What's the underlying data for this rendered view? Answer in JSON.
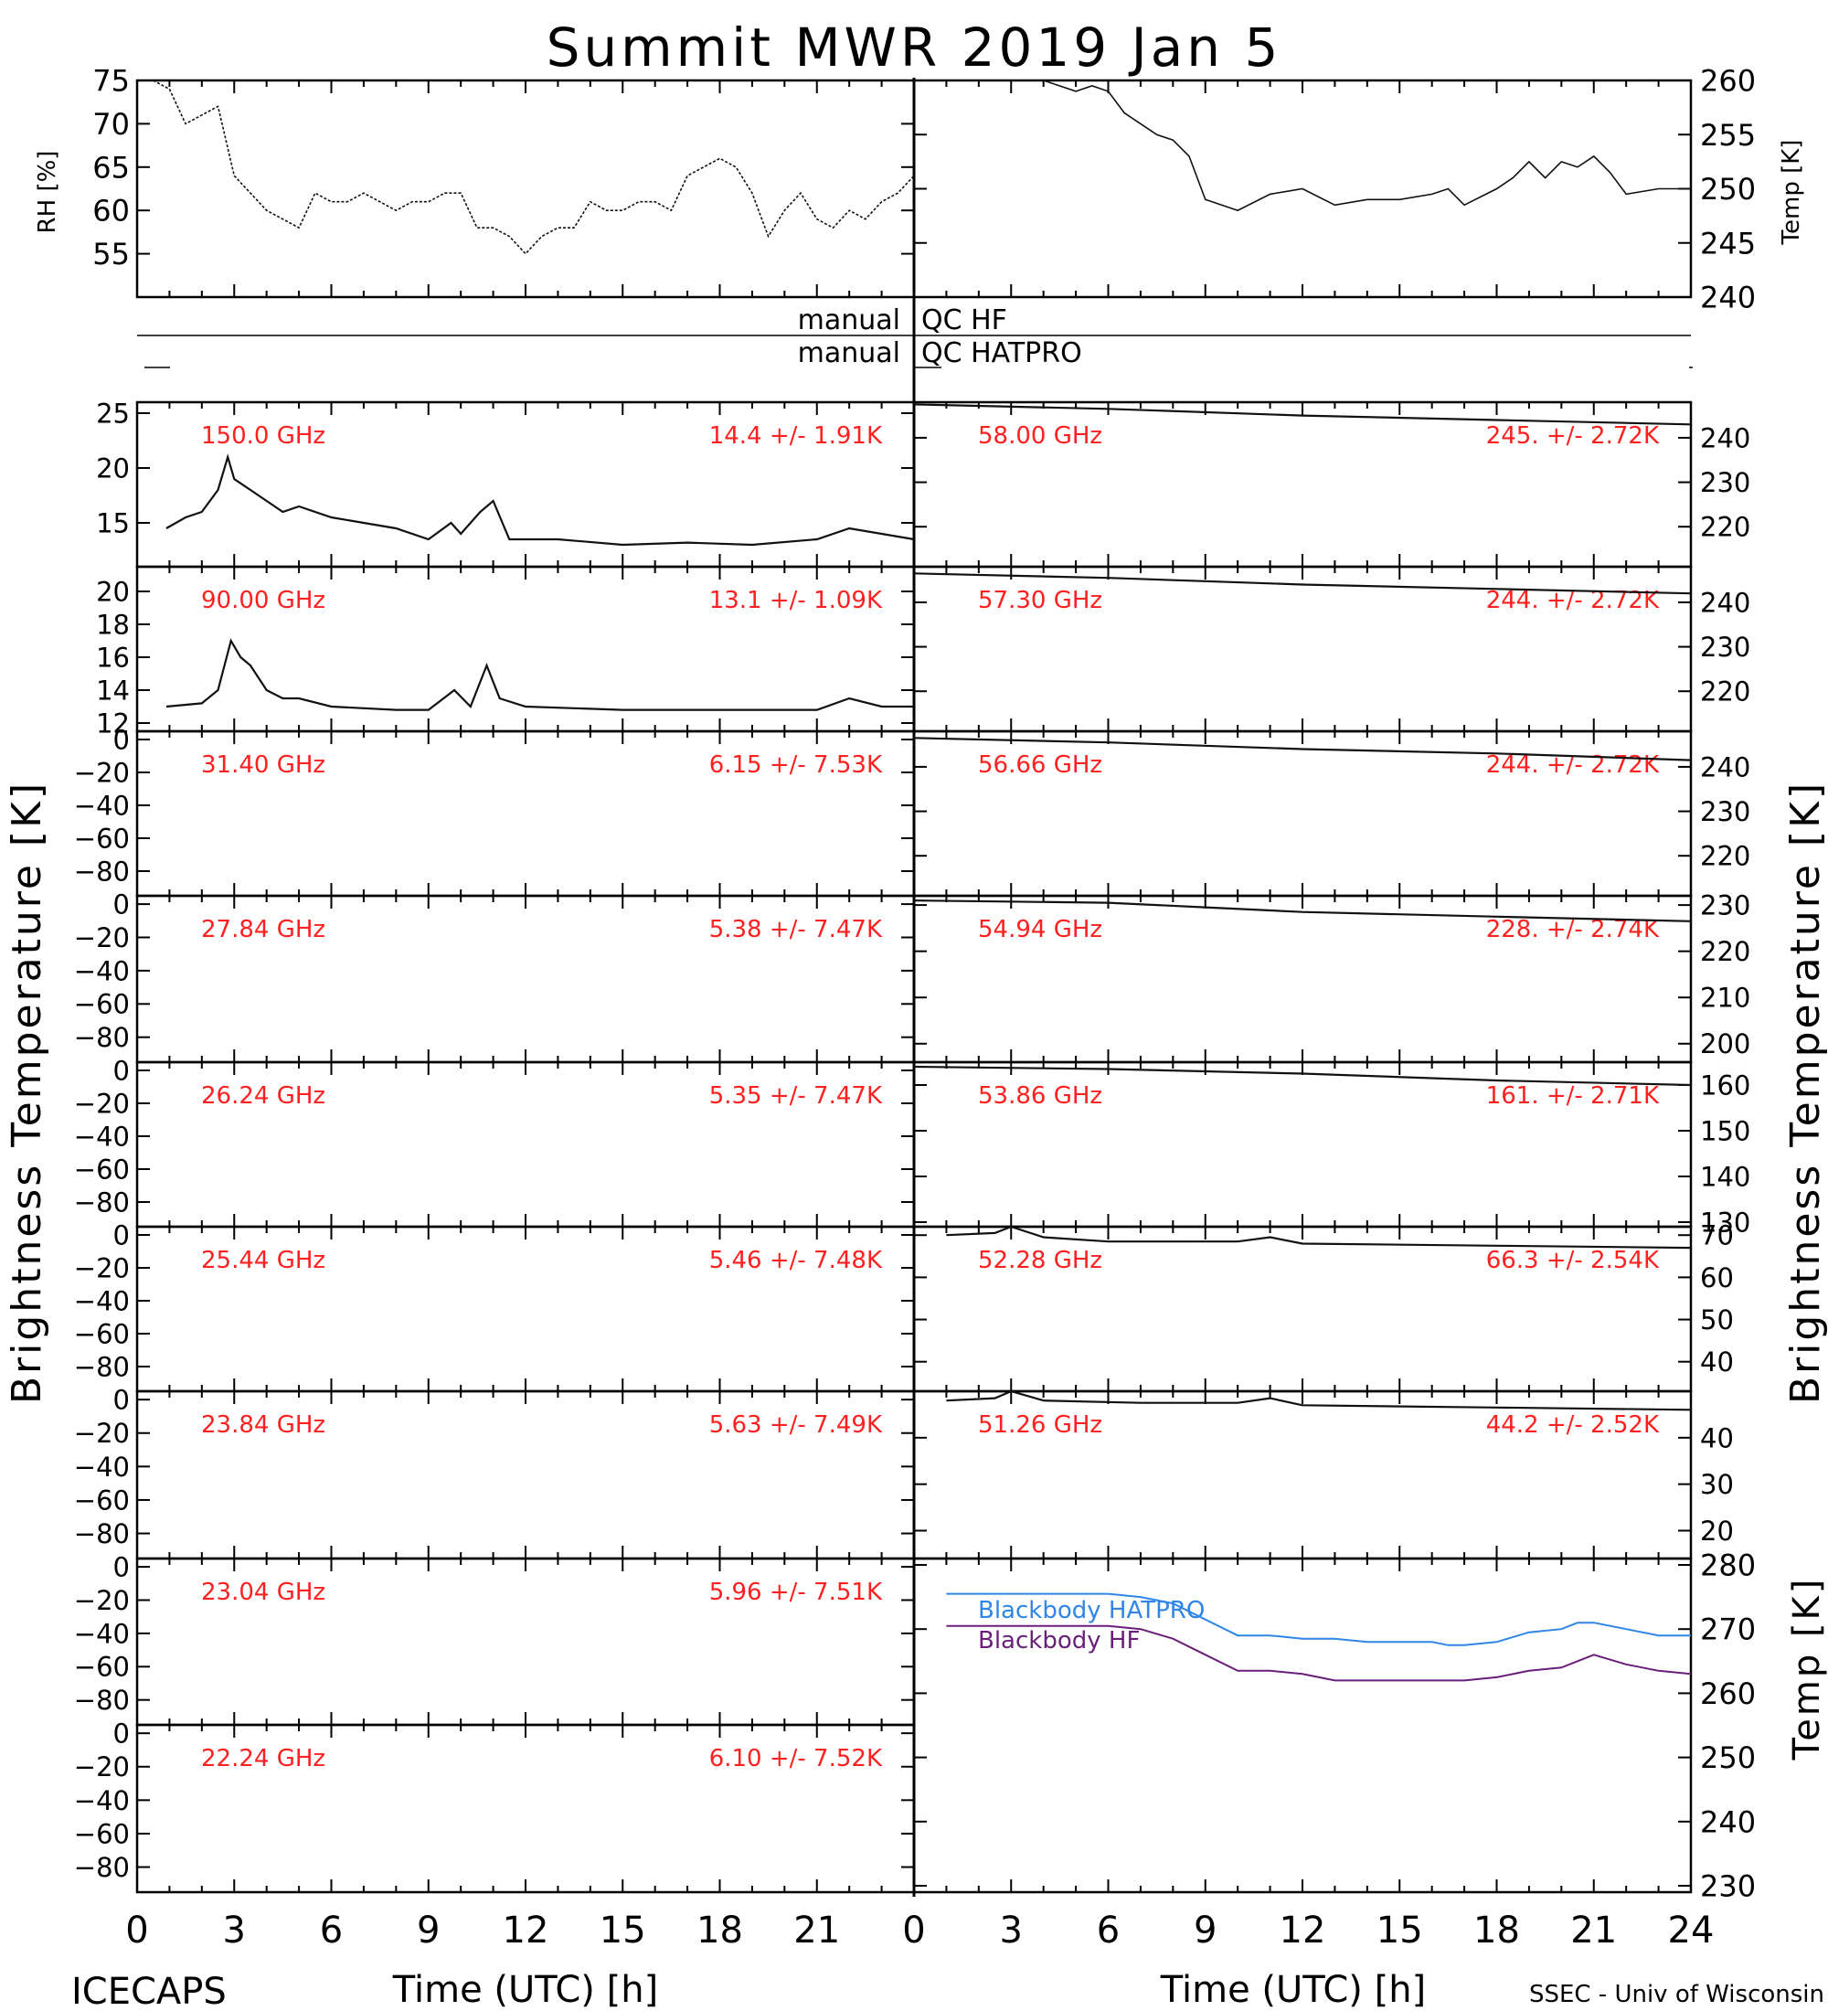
{
  "header": {
    "title": "Summit MWR 2019 Jan  5",
    "footer_left": "ICECAPS",
    "footer_right": "SSEC - Univ of Wisconsin"
  },
  "axes": {
    "x_label": "Time (UTC) [h]",
    "x_ticks_left": [
      "0",
      "3",
      "6",
      "9",
      "12",
      "15",
      "18",
      "21"
    ],
    "x_ticks_right": [
      "0",
      "3",
      "6",
      "9",
      "12",
      "15",
      "18",
      "21",
      "24"
    ],
    "left_ylabel": "Brightness Temperature [K]",
    "right_ylabel": "Brightness Temperature [K]",
    "rh_ylabel": "RH [%]",
    "temp_ylabel": "Temp [K]",
    "bb_ylabel": "Temp [K]"
  },
  "qc": {
    "hf_left": "manual",
    "hf_right": "QC HF",
    "hatpro_left": "manual",
    "hatpro_right": "QC HATPRO"
  },
  "colors": {
    "label_red": "#ff2020",
    "hatpro_blue": "#2f86e6",
    "hf_purple": "#6a1f7a",
    "trace": "#111111"
  },
  "chart_data": [
    {
      "id": "rh",
      "type": "line",
      "ylabel": "RH [%]",
      "yticks": [
        55,
        60,
        65,
        70,
        75
      ],
      "ylim": [
        50,
        75
      ],
      "xlim": [
        0,
        24
      ],
      "x": [
        0.5,
        1,
        1.5,
        2,
        2.5,
        3,
        3.5,
        4,
        4.5,
        5,
        5.5,
        6,
        6.5,
        7,
        7.5,
        8,
        8.5,
        9,
        9.5,
        10,
        10.5,
        11,
        11.5,
        12,
        12.5,
        13,
        13.5,
        14,
        14.5,
        15,
        15.5,
        16,
        16.5,
        17,
        17.5,
        18,
        18.5,
        19,
        19.5,
        20,
        20.5,
        21,
        21.5,
        22,
        22.5,
        23,
        23.5,
        24
      ],
      "y": [
        75,
        74,
        70,
        71,
        72,
        64,
        62,
        60,
        59,
        58,
        62,
        61,
        61,
        62,
        61,
        60,
        61,
        61,
        62,
        62,
        58,
        58,
        57,
        55,
        57,
        58,
        58,
        61,
        60,
        60,
        61,
        61,
        60,
        64,
        65,
        66,
        65,
        62,
        57,
        60,
        62,
        59,
        58,
        60,
        59,
        61,
        62,
        64
      ]
    },
    {
      "id": "temp",
      "type": "line",
      "ylabel": "Temp [K]",
      "yticks": [
        240,
        245,
        250,
        255,
        260
      ],
      "ylim": [
        240,
        260
      ],
      "xlim": [
        0,
        24
      ],
      "x": [
        0,
        1,
        2,
        3,
        4,
        5,
        5.5,
        6,
        6.5,
        7,
        7.5,
        8,
        8.5,
        9,
        9.5,
        10,
        11,
        12,
        13,
        14,
        15,
        16,
        16.5,
        17,
        18,
        18.5,
        19,
        19.5,
        20,
        20.5,
        21,
        21.5,
        22,
        23,
        24
      ],
      "y": [
        260,
        260,
        260,
        260,
        260,
        259,
        259.5,
        259,
        257,
        256,
        255,
        254.5,
        253,
        249,
        248.5,
        248,
        249.5,
        250,
        248.5,
        249,
        249,
        249.5,
        250,
        248.5,
        250,
        251,
        252.5,
        251,
        252.5,
        252,
        253,
        251.5,
        249.5,
        250,
        250
      ]
    }
  ],
  "channels_left": [
    {
      "freq": "150.0 GHz",
      "stats": "14.4 +/-  1.91K",
      "yticks": [
        15,
        20,
        25
      ],
      "ylim": [
        11,
        26
      ],
      "trace": [
        [
          0.9,
          14.5
        ],
        [
          1.5,
          15.5
        ],
        [
          2,
          16
        ],
        [
          2.5,
          18
        ],
        [
          2.8,
          21
        ],
        [
          3,
          19
        ],
        [
          3.5,
          18
        ],
        [
          4,
          17
        ],
        [
          4.5,
          16
        ],
        [
          5,
          16.5
        ],
        [
          6,
          15.5
        ],
        [
          7,
          15
        ],
        [
          8,
          14.5
        ],
        [
          9,
          13.5
        ],
        [
          9.7,
          15
        ],
        [
          10,
          14
        ],
        [
          10.6,
          16
        ],
        [
          11,
          17
        ],
        [
          11.5,
          13.5
        ],
        [
          13,
          13.5
        ],
        [
          15,
          13
        ],
        [
          17,
          13.2
        ],
        [
          19,
          13
        ],
        [
          21,
          13.5
        ],
        [
          22,
          14.5
        ],
        [
          23,
          14
        ],
        [
          24,
          13.5
        ]
      ]
    },
    {
      "freq": "90.00 GHz",
      "stats": "13.1 +/-  1.09K",
      "yticks": [
        12,
        14,
        16,
        18,
        20
      ],
      "ylim": [
        11.5,
        21.5
      ],
      "trace": [
        [
          0.9,
          13
        ],
        [
          2,
          13.2
        ],
        [
          2.5,
          14
        ],
        [
          2.9,
          17
        ],
        [
          3.2,
          16
        ],
        [
          3.5,
          15.5
        ],
        [
          4,
          14
        ],
        [
          4.5,
          13.5
        ],
        [
          5,
          13.5
        ],
        [
          6,
          13
        ],
        [
          8,
          12.8
        ],
        [
          9,
          12.8
        ],
        [
          9.8,
          14
        ],
        [
          10.3,
          13
        ],
        [
          10.8,
          15.5
        ],
        [
          11.2,
          13.5
        ],
        [
          12,
          13
        ],
        [
          15,
          12.8
        ],
        [
          18,
          12.8
        ],
        [
          21,
          12.8
        ],
        [
          22,
          13.5
        ],
        [
          23,
          13
        ],
        [
          24,
          13
        ]
      ]
    },
    {
      "freq": "31.40 GHz",
      "stats": "6.15 +/- 7.53K",
      "yticks": [
        0,
        -20,
        -40,
        -60,
        -80
      ],
      "ylim": [
        -95,
        5
      ]
    },
    {
      "freq": "27.84 GHz",
      "stats": "5.38 +/- 7.47K",
      "yticks": [
        0,
        -20,
        -40,
        -60,
        -80
      ],
      "ylim": [
        -95,
        5
      ]
    },
    {
      "freq": "26.24 GHz",
      "stats": "5.35 +/- 7.47K",
      "yticks": [
        0,
        -20,
        -40,
        -60,
        -80
      ],
      "ylim": [
        -95,
        5
      ]
    },
    {
      "freq": "25.44 GHz",
      "stats": "5.46 +/- 7.48K",
      "yticks": [
        0,
        -20,
        -40,
        -60,
        -80
      ],
      "ylim": [
        -95,
        5
      ]
    },
    {
      "freq": "23.84 GHz",
      "stats": "5.63 +/- 7.49K",
      "yticks": [
        0,
        -20,
        -40,
        -60,
        -80
      ],
      "ylim": [
        -95,
        5
      ]
    },
    {
      "freq": "23.04 GHz",
      "stats": "5.96 +/- 7.51K",
      "yticks": [
        0,
        -20,
        -40,
        -60,
        -80
      ],
      "ylim": [
        -95,
        5
      ]
    },
    {
      "freq": "22.24 GHz",
      "stats": "6.10 +/- 7.52K",
      "yticks": [
        0,
        -20,
        -40,
        -60,
        -80
      ],
      "ylim": [
        -95,
        5
      ]
    }
  ],
  "channels_right": [
    {
      "freq": "58.00 GHz",
      "stats": "245. +/- 2.72K",
      "yticks": [
        220,
        230,
        240
      ],
      "ylim": [
        211,
        248
      ],
      "trace": [
        [
          0,
          247.5
        ],
        [
          6,
          246.5
        ],
        [
          12,
          245
        ],
        [
          18,
          244
        ],
        [
          24,
          243
        ]
      ]
    },
    {
      "freq": "57.30 GHz",
      "stats": "244. +/- 2.72K",
      "yticks": [
        220,
        230,
        240
      ],
      "ylim": [
        211,
        248
      ],
      "trace": [
        [
          0,
          246.5
        ],
        [
          6,
          245.5
        ],
        [
          12,
          244
        ],
        [
          18,
          243
        ],
        [
          24,
          242
        ]
      ]
    },
    {
      "freq": "56.66 GHz",
      "stats": "244. +/- 2.72K",
      "yticks": [
        220,
        230,
        240
      ],
      "ylim": [
        211,
        248
      ],
      "trace": [
        [
          0,
          246.5
        ],
        [
          6,
          245.5
        ],
        [
          12,
          244
        ],
        [
          18,
          243
        ],
        [
          24,
          241.5
        ]
      ]
    },
    {
      "freq": "54.94 GHz",
      "stats": "228. +/- 2.74K",
      "yticks": [
        200,
        210,
        220,
        230
      ],
      "ylim": [
        196,
        232
      ],
      "trace": [
        [
          0,
          231
        ],
        [
          6,
          230.5
        ],
        [
          9,
          229.5
        ],
        [
          12,
          228.5
        ],
        [
          18,
          227.5
        ],
        [
          24,
          226.5
        ]
      ]
    },
    {
      "freq": "53.86 GHz",
      "stats": "161. +/- 2.71K",
      "yticks": [
        130,
        140,
        150,
        160
      ],
      "ylim": [
        129,
        165
      ],
      "trace": [
        [
          0,
          164
        ],
        [
          6,
          163.5
        ],
        [
          12,
          162.5
        ],
        [
          18,
          161
        ],
        [
          24,
          160
        ]
      ]
    },
    {
      "freq": "52.28 GHz",
      "stats": "66.3 +/- 2.54K",
      "yticks": [
        40,
        50,
        60,
        70
      ],
      "ylim": [
        33,
        72
      ],
      "trace": [
        [
          1,
          70
        ],
        [
          2.5,
          70.5
        ],
        [
          3,
          72
        ],
        [
          4,
          69.5
        ],
        [
          6,
          68.5
        ],
        [
          10,
          68.5
        ],
        [
          11,
          69.5
        ],
        [
          12,
          68
        ],
        [
          18,
          67.5
        ],
        [
          24,
          67
        ]
      ]
    },
    {
      "freq": "51.26 GHz",
      "stats": "44.2 +/- 2.52K",
      "yticks": [
        20,
        30,
        40
      ],
      "ylim": [
        14,
        50
      ],
      "trace": [
        [
          1,
          48
        ],
        [
          2.5,
          48.5
        ],
        [
          3,
          50
        ],
        [
          4,
          48
        ],
        [
          7,
          47.5
        ],
        [
          10,
          47.5
        ],
        [
          11,
          48.5
        ],
        [
          12,
          47
        ],
        [
          18,
          46.5
        ],
        [
          24,
          46
        ]
      ]
    }
  ],
  "blackbody": {
    "type": "line",
    "ylabel": "Temp [K]",
    "yticks": [
      230,
      240,
      250,
      260,
      270,
      280
    ],
    "ylim": [
      229,
      281
    ],
    "xlim": [
      0,
      24
    ],
    "series": [
      {
        "name": "Blackbody HATPRO",
        "color": "#2f86e6",
        "x": [
          1,
          2,
          4,
          6,
          7,
          8,
          9,
          10,
          11,
          12,
          13,
          14,
          15,
          16,
          16.5,
          17,
          18,
          19,
          20,
          20.5,
          21,
          22,
          23,
          24
        ],
        "y": [
          275.5,
          275.5,
          275.5,
          275.5,
          275,
          274,
          271.5,
          269,
          269,
          268.5,
          268.5,
          268,
          268,
          268,
          267.5,
          267.5,
          268,
          269.5,
          270,
          271,
          271,
          270,
          269,
          269
        ]
      },
      {
        "name": "Blackbody HF",
        "color": "#6a1f7a",
        "x": [
          1,
          2,
          4,
          6,
          7,
          8,
          9,
          10,
          11,
          12,
          13,
          14,
          15,
          16,
          16.5,
          17,
          18,
          19,
          20,
          20.5,
          21,
          22,
          23,
          24
        ],
        "y": [
          270.5,
          270.5,
          270.5,
          270.5,
          270,
          268.5,
          266,
          263.5,
          263.5,
          263,
          262,
          262,
          262,
          262,
          262,
          262,
          262.5,
          263.5,
          264,
          265,
          266,
          264.5,
          263.5,
          263
        ]
      }
    ]
  }
}
